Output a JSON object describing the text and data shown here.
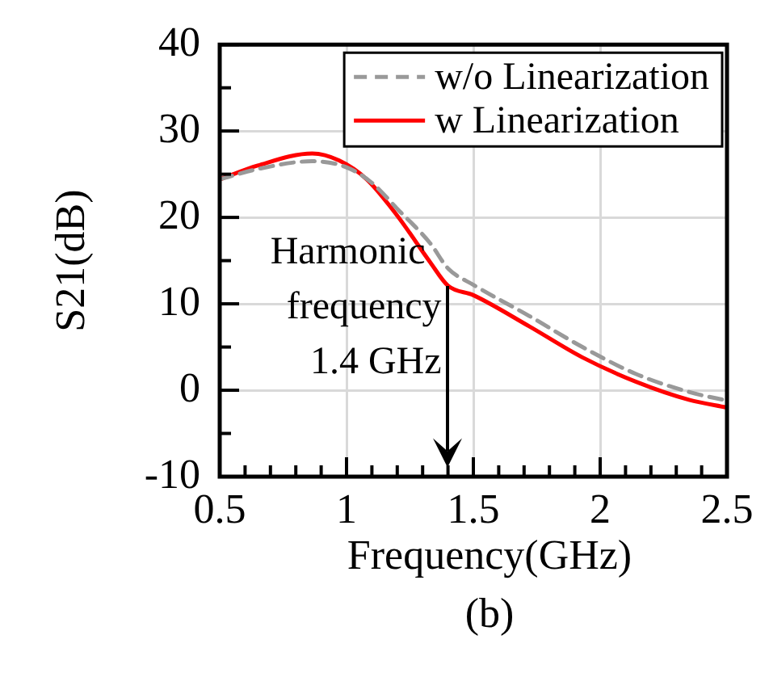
{
  "chart_data": {
    "type": "line",
    "xlabel": "Frequency(GHz)",
    "ylabel": "S21(dB)",
    "x": [
      0.5,
      0.65,
      0.865,
      0.97,
      1.08,
      1.2,
      1.33,
      1.4,
      1.5,
      1.72,
      1.93,
      2.14,
      2.35,
      2.5
    ],
    "series": [
      {
        "name": "w/o Linearization",
        "color": "#999999",
        "line_style": "dashed",
        "x": [
          0.5,
          0.65,
          0.865,
          1.0,
          1.1,
          1.2,
          1.33,
          1.4,
          1.5,
          1.72,
          1.93,
          2.14,
          2.35,
          2.5
        ],
        "values": [
          24.4,
          25.6,
          26.5,
          25.8,
          24,
          21,
          17,
          14.1,
          12.2,
          8.6,
          5,
          1.9,
          -0.2,
          -1.2
        ]
      },
      {
        "name": "w Linearization",
        "color": "#ff0000",
        "line_style": "solid",
        "values": [
          24.4,
          26,
          27.4,
          26.6,
          24.4,
          20.2,
          14.8,
          12.1,
          11,
          7.4,
          3.8,
          1,
          -1.1,
          -2
        ]
      }
    ],
    "xlim": [
      0.5,
      2.5
    ],
    "xticks": [
      0.5,
      {
        "value": 0.6,
        "label": null
      },
      {
        "value": 0.7,
        "label": null
      },
      {
        "value": 0.8,
        "label": null
      },
      {
        "value": 0.9,
        "label": null
      },
      1,
      {
        "value": 1.1,
        "label": null
      },
      {
        "value": 1.2,
        "label": null
      },
      {
        "value": 1.3,
        "label": null
      },
      {
        "value": 1.4,
        "label": null
      },
      1.5,
      {
        "value": 1.6,
        "label": null
      },
      {
        "value": 1.7,
        "label": null
      },
      {
        "value": 1.8,
        "label": null
      },
      {
        "value": 1.9,
        "label": null
      },
      2,
      {
        "value": 2.1,
        "label": null
      },
      {
        "value": 2.2,
        "label": null
      },
      {
        "value": 2.3,
        "label": null
      },
      {
        "value": 2.4,
        "label": null
      },
      2.5
    ],
    "ylim": [
      -10,
      40
    ],
    "yticks": [
      -10,
      {
        "value": -5,
        "label": null
      },
      0,
      {
        "value": 5,
        "label": null
      },
      10,
      {
        "value": 15,
        "label": null
      },
      20,
      {
        "value": 25,
        "label": null
      },
      30,
      {
        "value": 35,
        "label": null
      },
      40
    ],
    "grid": true,
    "legend": "top right",
    "marker": "none",
    "annotations": [
      {
        "text": "Harmonic\nfrequency\n1.4 GHz",
        "x": 1.4,
        "y": 12.1
      },
      "(b)"
    ]
  }
}
